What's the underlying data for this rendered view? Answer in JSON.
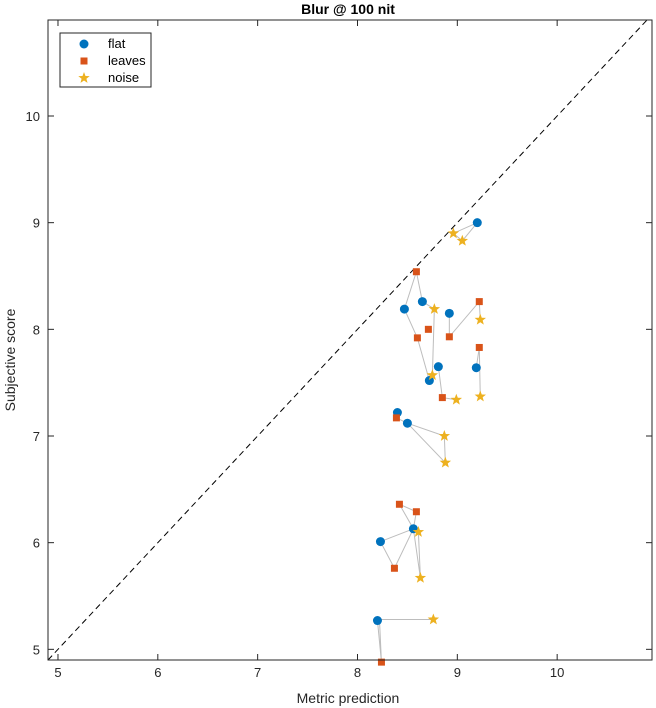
{
  "chart_data": {
    "type": "scatter",
    "title": "Blur @ 100 nit",
    "xlabel": "Metric prediction",
    "ylabel": "Subjective score",
    "xlim": [
      4.9,
      10.95
    ],
    "ylim": [
      4.9,
      10.9
    ],
    "xticks": [
      5,
      6,
      7,
      8,
      9,
      10
    ],
    "yticks": [
      5,
      6,
      7,
      8,
      9,
      10
    ],
    "grid": false,
    "legend_position": "top-left",
    "diagonal_reference": true,
    "series": [
      {
        "name": "flat",
        "marker": "circle",
        "color": "#0072BD",
        "points": [
          [
            9.2,
            9.0
          ],
          [
            8.65,
            8.26
          ],
          [
            8.47,
            8.19
          ],
          [
            8.92,
            8.15
          ],
          [
            8.81,
            7.65
          ],
          [
            9.19,
            7.64
          ],
          [
            8.72,
            7.52
          ],
          [
            8.4,
            7.22
          ],
          [
            8.5,
            7.12
          ],
          [
            8.56,
            6.13
          ],
          [
            8.23,
            6.01
          ],
          [
            8.2,
            5.27
          ]
        ]
      },
      {
        "name": "leaves",
        "marker": "square",
        "color": "#D95319",
        "points": [
          [
            8.59,
            8.54
          ],
          [
            9.22,
            8.26
          ],
          [
            8.71,
            8.0
          ],
          [
            8.92,
            7.93
          ],
          [
            8.6,
            7.92
          ],
          [
            9.22,
            7.83
          ],
          [
            8.85,
            7.36
          ],
          [
            8.39,
            7.17
          ],
          [
            8.42,
            6.36
          ],
          [
            8.59,
            6.29
          ],
          [
            8.37,
            5.76
          ],
          [
            8.24,
            4.88
          ]
        ]
      },
      {
        "name": "noise",
        "marker": "star",
        "color": "#EDB120",
        "points": [
          [
            8.96,
            8.9
          ],
          [
            9.05,
            8.83
          ],
          [
            8.77,
            8.19
          ],
          [
            9.23,
            8.09
          ],
          [
            8.75,
            7.57
          ],
          [
            9.23,
            7.37
          ],
          [
            8.99,
            7.34
          ],
          [
            8.87,
            7.0
          ],
          [
            8.88,
            6.75
          ],
          [
            8.61,
            6.1
          ],
          [
            8.63,
            5.67
          ],
          [
            8.76,
            5.28
          ]
        ]
      }
    ],
    "connector_color": "#bdbdbd",
    "connectors": [
      [
        [
          9.2,
          9.0
        ],
        [
          8.96,
          8.9
        ],
        [
          9.05,
          8.83
        ],
        [
          9.2,
          9.0
        ]
      ],
      [
        [
          8.59,
          8.54
        ],
        [
          8.47,
          8.19
        ],
        [
          8.6,
          7.92
        ],
        [
          8.72,
          7.52
        ],
        [
          8.75,
          7.57
        ],
        [
          8.77,
          8.19
        ],
        [
          8.65,
          8.26
        ],
        [
          8.59,
          8.54
        ]
      ],
      [
        [
          8.92,
          8.15
        ],
        [
          8.92,
          7.93
        ],
        [
          9.22,
          8.26
        ],
        [
          9.23,
          8.09
        ]
      ],
      [
        [
          8.81,
          7.65
        ],
        [
          8.85,
          7.36
        ],
        [
          8.99,
          7.34
        ]
      ],
      [
        [
          9.19,
          7.64
        ],
        [
          9.22,
          7.83
        ],
        [
          9.23,
          7.37
        ]
      ],
      [
        [
          8.4,
          7.22
        ],
        [
          8.39,
          7.17
        ],
        [
          8.5,
          7.12
        ],
        [
          8.87,
          7.0
        ],
        [
          8.88,
          6.75
        ],
        [
          8.5,
          7.12
        ]
      ],
      [
        [
          8.42,
          6.36
        ],
        [
          8.59,
          6.29
        ],
        [
          8.56,
          6.13
        ],
        [
          8.42,
          6.36
        ]
      ],
      [
        [
          8.23,
          6.01
        ],
        [
          8.56,
          6.13
        ],
        [
          8.61,
          6.1
        ],
        [
          8.63,
          5.67
        ],
        [
          8.56,
          6.13
        ],
        [
          8.37,
          5.76
        ],
        [
          8.23,
          6.01
        ]
      ],
      [
        [
          8.2,
          5.27
        ],
        [
          8.24,
          4.88
        ],
        [
          8.22,
          5.28
        ],
        [
          8.76,
          5.28
        ]
      ]
    ]
  }
}
